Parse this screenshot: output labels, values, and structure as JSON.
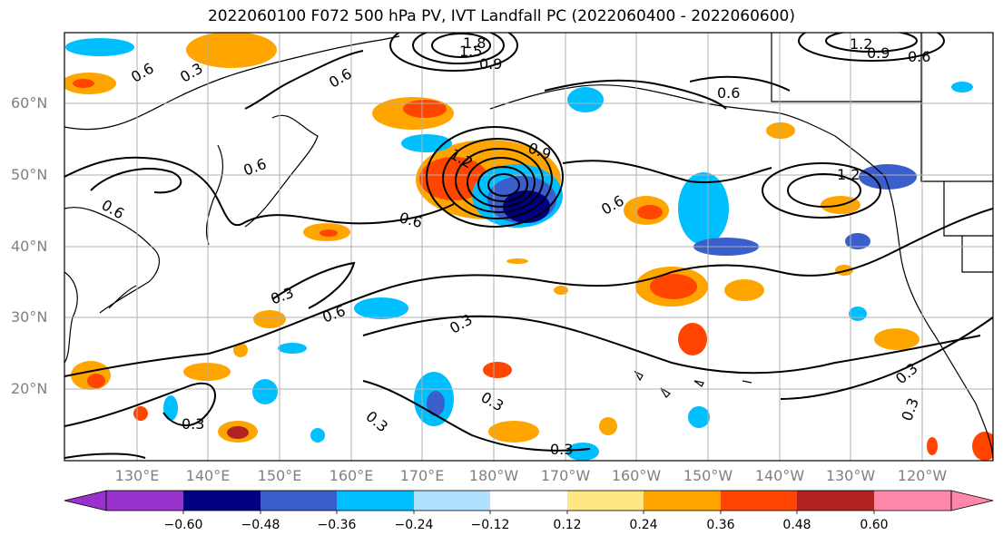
{
  "title": "2022060100 F072 500 hPa PV, IVT Landfall PC (2022060400 - 2022060600)",
  "lat_labels": [
    "60°N",
    "50°N",
    "40°N",
    "30°N",
    "20°N"
  ],
  "lon_labels": [
    "130°E",
    "140°E",
    "150°E",
    "160°E",
    "170°E",
    "180°W",
    "170°W",
    "160°W",
    "150°W",
    "140°W",
    "130°W",
    "120°W"
  ],
  "colorbar": {
    "ticks": [
      "−0.60",
      "−0.48",
      "−0.36",
      "−0.24",
      "−0.12",
      "0.12",
      "0.24",
      "0.36",
      "0.48",
      "0.60"
    ],
    "colors": [
      "#9932cc",
      "#000080",
      "#3a5fcd",
      "#00bfff",
      "#b0e2ff",
      "#ffffff",
      "#ffe680",
      "#ffa500",
      "#ff4500",
      "#b22222",
      "#ff88aa"
    ]
  },
  "contour_labels": [
    "0.3",
    "0.6",
    "0.9",
    "1.2",
    "1.5",
    "1.8"
  ],
  "colors": {
    "land_outline": "#000000",
    "grid": "#b0b0b0",
    "tick_label": "#808080"
  }
}
